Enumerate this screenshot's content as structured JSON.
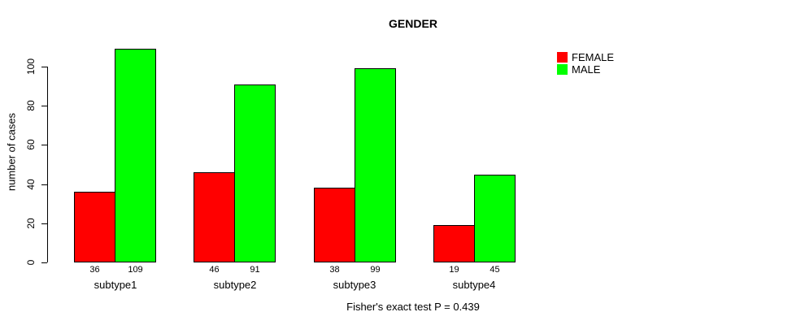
{
  "chart_data": {
    "type": "bar",
    "title": "GENDER",
    "xlabel": "",
    "ylabel": "number of cases",
    "categories": [
      "subtype1",
      "subtype2",
      "subtype3",
      "subtype4"
    ],
    "series": [
      {
        "name": "FEMALE",
        "color": "#ff0000",
        "values": [
          36,
          46,
          38,
          19
        ]
      },
      {
        "name": "MALE",
        "color": "#00ff00",
        "values": [
          109,
          91,
          99,
          45
        ]
      }
    ],
    "value_labels_shown": true,
    "yticks": [
      0,
      20,
      40,
      60,
      80,
      100
    ],
    "ylim": [
      0,
      115
    ],
    "grid": false,
    "legend_position": "top-right",
    "annotation": "Fisher's exact test P = 0.439"
  }
}
